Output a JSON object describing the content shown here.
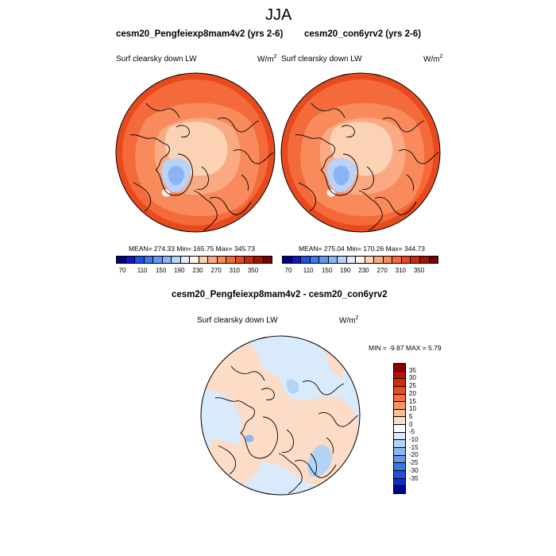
{
  "figure": {
    "season": "JJA",
    "panel_a": {
      "title": "cesm20_Pengfeiexp8mam4v2 (yrs 2-6)",
      "variable": "Surf clearsky down LW",
      "units": "W/m",
      "units_sup": "2",
      "stats": "MEAN= 274.33  Min= 165.75  Max= 345.73"
    },
    "panel_b": {
      "title": "cesm20_con6yrv2 (yrs 2-6)",
      "variable": "Surf clearsky down LW",
      "units": "W/m",
      "units_sup": "2",
      "stats": "MEAN= 275.04  Min= 170.26  Max= 344.73"
    },
    "panel_diff": {
      "title": "cesm20_Pengfeiexp8mam4v2 - cesm20_con6yrv2",
      "variable": "Surf clearsky down LW",
      "units": "W/m",
      "units_sup": "2",
      "stats": "MIN =  -9.87 MAX =   5.79"
    }
  },
  "colorbar_top": {
    "colors": [
      "#00007f",
      "#1414c8",
      "#1e50e6",
      "#3c78f0",
      "#6496f0",
      "#8cb4f5",
      "#b9d2f8",
      "#e1ebfa",
      "#fff3e6",
      "#fcd2b4",
      "#faaa82",
      "#f88a5c",
      "#f46a3a",
      "#e84a1e",
      "#c82a0a",
      "#a01404",
      "#780000"
    ],
    "labels": [
      "70",
      "110",
      "150",
      "190",
      "230",
      "270",
      "310",
      "350"
    ]
  },
  "colorbar_diff": {
    "colors": [
      "#8c0000",
      "#b41404",
      "#d8280a",
      "#f0481e",
      "#f66e40",
      "#f8966a",
      "#fabc98",
      "#fcdcc6",
      "#ffffff",
      "#d8eafb",
      "#b2d2f6",
      "#8cb6f0",
      "#6496ea",
      "#3c76e2",
      "#2050d8",
      "#0a2ec0",
      "#00008c"
    ],
    "labels": [
      "35",
      "30",
      "25",
      "20",
      "15",
      "10",
      "5",
      "0",
      "-5",
      "-10",
      "-15",
      "-20",
      "-25",
      "-30",
      "-35"
    ]
  }
}
